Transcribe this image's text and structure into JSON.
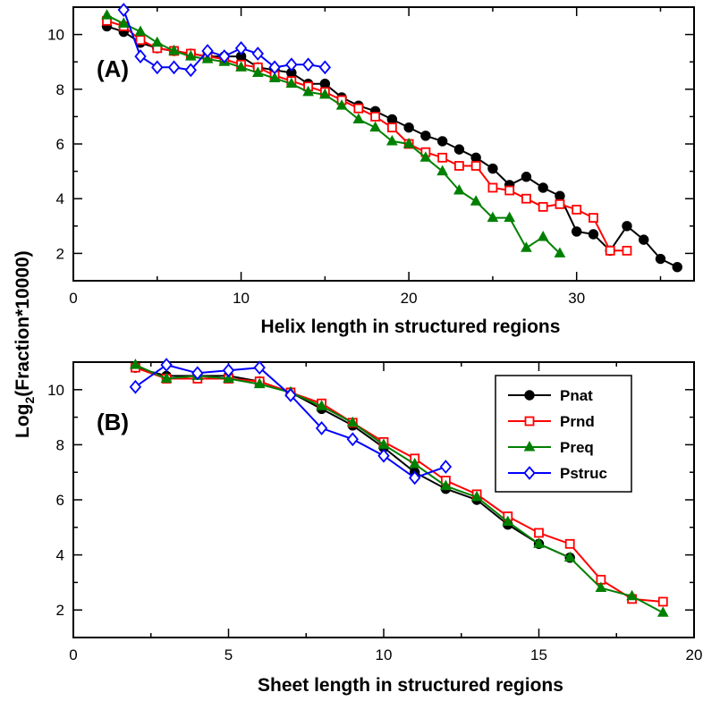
{
  "figure": {
    "ylabel_main": "Log",
    "ylabel_sub": "2",
    "ylabel_rest": "(Fraction*10000)"
  },
  "chart_data": [
    {
      "type": "line",
      "panel_label": "(A)",
      "xlabel": "Helix length in structured regions",
      "xlim": [
        0,
        37
      ],
      "ylim": [
        1,
        11
      ],
      "xticks": [
        0,
        10,
        20,
        30
      ],
      "yticks": [
        2,
        4,
        6,
        8,
        10
      ],
      "legend": false,
      "series": [
        {
          "name": "Pnat",
          "color": "#000000",
          "marker": "filled-circle",
          "x": [
            2,
            3,
            4,
            5,
            6,
            7,
            8,
            9,
            10,
            11,
            12,
            13,
            14,
            15,
            16,
            17,
            18,
            19,
            20,
            21,
            22,
            23,
            24,
            25,
            26,
            27,
            28,
            29,
            30,
            31,
            32,
            33,
            34,
            35,
            36
          ],
          "y": [
            10.3,
            10.1,
            9.7,
            9.5,
            9.4,
            9.3,
            9.2,
            9.2,
            9.2,
            8.8,
            8.7,
            8.6,
            8.2,
            8.2,
            7.7,
            7.4,
            7.2,
            6.9,
            6.6,
            6.3,
            6.1,
            5.8,
            5.5,
            5.1,
            4.5,
            4.8,
            4.4,
            4.1,
            2.8,
            2.7,
            2.1,
            3.0,
            2.5,
            1.8,
            1.5
          ]
        },
        {
          "name": "Prnd",
          "color": "#ff0000",
          "marker": "open-square",
          "x": [
            2,
            3,
            4,
            5,
            6,
            7,
            8,
            9,
            10,
            11,
            12,
            13,
            14,
            15,
            16,
            17,
            18,
            19,
            20,
            21,
            22,
            23,
            24,
            25,
            26,
            27,
            28,
            29,
            30,
            31,
            32,
            33
          ],
          "y": [
            10.5,
            10.3,
            9.8,
            9.5,
            9.4,
            9.3,
            9.2,
            9.1,
            8.9,
            8.8,
            8.5,
            8.3,
            8.1,
            7.9,
            7.6,
            7.3,
            7.0,
            6.6,
            6.0,
            5.7,
            5.5,
            5.2,
            5.2,
            4.4,
            4.3,
            4.0,
            3.7,
            3.8,
            3.6,
            3.3,
            2.1,
            2.1
          ]
        },
        {
          "name": "Preq",
          "color": "#008000",
          "marker": "filled-triangle",
          "x": [
            2,
            3,
            4,
            5,
            6,
            7,
            8,
            9,
            10,
            11,
            12,
            13,
            14,
            15,
            16,
            17,
            18,
            19,
            20,
            21,
            22,
            23,
            24,
            25,
            26,
            27,
            28,
            29
          ],
          "y": [
            10.7,
            10.4,
            10.1,
            9.7,
            9.4,
            9.2,
            9.1,
            9.0,
            8.8,
            8.6,
            8.4,
            8.2,
            7.9,
            7.8,
            7.4,
            6.9,
            6.6,
            6.1,
            6.0,
            5.5,
            5.0,
            4.3,
            3.9,
            3.3,
            3.3,
            2.2,
            2.6,
            2.0
          ]
        },
        {
          "name": "Pstruc",
          "color": "#0000ff",
          "marker": "open-diamond",
          "x": [
            3,
            4,
            5,
            6,
            7,
            8,
            9,
            10,
            11,
            12,
            13,
            14,
            15
          ],
          "y": [
            10.9,
            9.2,
            8.8,
            8.8,
            8.7,
            9.4,
            9.2,
            9.5,
            9.3,
            8.8,
            8.9,
            8.9,
            8.8
          ]
        }
      ]
    },
    {
      "type": "line",
      "panel_label": "(B)",
      "xlabel": "Sheet length in structured regions",
      "xlim": [
        0,
        20
      ],
      "ylim": [
        1,
        11
      ],
      "xticks": [
        0,
        5,
        10,
        15,
        20
      ],
      "yticks": [
        2,
        4,
        6,
        8,
        10
      ],
      "legend": true,
      "legend_position": "top-right",
      "series": [
        {
          "name": "Pnat",
          "color": "#000000",
          "marker": "filled-circle",
          "x": [
            2,
            3,
            4,
            5,
            6,
            7,
            8,
            9,
            10,
            11,
            12,
            13,
            14,
            15,
            16
          ],
          "y": [
            10.8,
            10.5,
            10.5,
            10.5,
            10.3,
            9.9,
            9.3,
            8.7,
            7.9,
            7.0,
            6.4,
            6.0,
            5.1,
            4.4,
            3.9
          ]
        },
        {
          "name": "Prnd",
          "color": "#ff0000",
          "marker": "open-square",
          "x": [
            2,
            3,
            4,
            5,
            6,
            7,
            8,
            9,
            10,
            11,
            12,
            13,
            14,
            15,
            16,
            17,
            18,
            19
          ],
          "y": [
            10.8,
            10.4,
            10.4,
            10.4,
            10.3,
            9.9,
            9.5,
            8.8,
            8.1,
            7.5,
            6.7,
            6.2,
            5.4,
            4.8,
            4.4,
            3.1,
            2.4,
            2.3
          ]
        },
        {
          "name": "Preq",
          "color": "#008000",
          "marker": "filled-triangle",
          "x": [
            2,
            3,
            4,
            5,
            6,
            7,
            8,
            9,
            10,
            11,
            12,
            13,
            14,
            15,
            16,
            17,
            18,
            19
          ],
          "y": [
            10.9,
            10.4,
            10.5,
            10.4,
            10.2,
            9.9,
            9.4,
            8.8,
            8.0,
            7.3,
            6.5,
            6.1,
            5.2,
            4.4,
            3.9,
            2.8,
            2.5,
            1.9
          ]
        },
        {
          "name": "Pstruc",
          "color": "#0000ff",
          "marker": "open-diamond",
          "x": [
            2,
            3,
            4,
            5,
            6,
            7,
            8,
            9,
            10,
            11,
            12
          ],
          "y": [
            10.1,
            10.9,
            10.6,
            10.7,
            10.8,
            9.8,
            8.6,
            8.2,
            7.6,
            6.8,
            7.2
          ]
        }
      ]
    }
  ]
}
